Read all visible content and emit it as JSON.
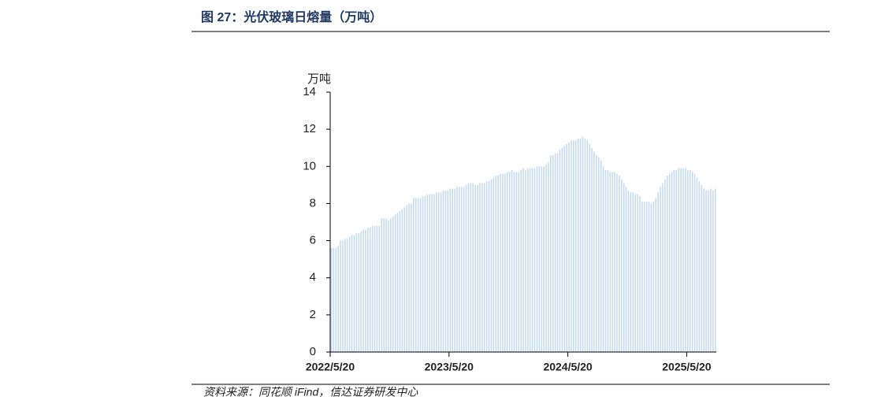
{
  "chart_data": {
    "type": "bar",
    "title": "图 27：光伏玻璃日熔量（万吨）",
    "y_label": "万吨",
    "source": "资料来源：同花顺 iFind，信达证券研发中心",
    "color": "#c6dbf0",
    "ylim": [
      0,
      14
    ],
    "yticks": [
      0,
      2,
      4,
      6,
      8,
      10,
      12,
      14
    ],
    "categories": [
      "2022/5/20",
      null,
      null,
      null,
      null,
      null,
      null,
      null,
      null,
      null,
      null,
      null,
      null,
      null,
      null,
      null,
      null,
      null,
      null,
      null,
      null,
      null,
      null,
      null,
      null,
      null,
      null,
      null,
      null,
      null,
      null,
      null,
      null,
      null,
      null,
      null,
      null,
      null,
      null,
      null,
      null,
      null,
      null,
      null,
      null,
      null,
      null,
      null,
      null,
      null,
      null,
      null,
      "2023/5/20",
      null,
      null,
      null,
      null,
      null,
      null,
      null,
      null,
      null,
      null,
      null,
      null,
      null,
      null,
      null,
      null,
      null,
      null,
      null,
      null,
      null,
      null,
      null,
      null,
      null,
      null,
      null,
      null,
      null,
      null,
      null,
      null,
      null,
      null,
      null,
      null,
      null,
      null,
      null,
      null,
      null,
      null,
      null,
      null,
      null,
      null,
      null,
      null,
      null,
      null,
      null,
      "2024/5/20",
      null,
      null,
      null,
      null,
      null,
      null,
      null,
      null,
      null,
      null,
      null,
      null,
      null,
      null,
      null,
      null,
      null,
      null,
      null,
      null,
      null,
      null,
      null,
      null,
      null,
      null,
      null,
      null,
      null,
      null,
      null,
      null,
      null,
      null,
      null,
      null,
      null,
      null,
      null,
      null,
      null,
      null,
      null,
      null,
      null,
      null,
      null,
      null,
      null,
      null,
      null,
      "2025/5/20",
      null,
      null,
      null,
      null,
      null,
      null,
      null,
      null,
      null,
      null,
      null,
      null
    ],
    "values": [
      5.6,
      5.6,
      5.6,
      5.7,
      6.0,
      6.0,
      6.1,
      6.1,
      6.2,
      6.3,
      6.3,
      6.4,
      6.4,
      6.5,
      6.6,
      6.6,
      6.7,
      6.7,
      6.8,
      6.8,
      6.8,
      6.8,
      7.2,
      7.2,
      7.2,
      7.1,
      7.2,
      7.3,
      7.4,
      7.5,
      7.6,
      7.7,
      7.8,
      7.9,
      8.0,
      8.0,
      8.3,
      8.3,
      8.3,
      8.3,
      8.4,
      8.4,
      8.5,
      8.5,
      8.5,
      8.5,
      8.6,
      8.6,
      8.6,
      8.7,
      8.7,
      8.7,
      8.8,
      8.8,
      8.8,
      8.9,
      8.9,
      8.9,
      8.9,
      9.0,
      9.1,
      9.1,
      9.1,
      9.0,
      9.0,
      9.1,
      9.1,
      9.1,
      9.2,
      9.2,
      9.3,
      9.4,
      9.5,
      9.5,
      9.6,
      9.6,
      9.6,
      9.7,
      9.7,
      9.8,
      9.7,
      9.7,
      9.7,
      9.8,
      9.9,
      9.8,
      9.9,
      9.9,
      9.9,
      9.9,
      10.0,
      10.0,
      10.0,
      10.0,
      10.1,
      10.2,
      10.6,
      10.6,
      10.7,
      10.7,
      10.9,
      11.0,
      11.1,
      11.2,
      11.3,
      11.4,
      11.4,
      11.4,
      11.5,
      11.5,
      11.6,
      11.5,
      11.4,
      11.2,
      11.0,
      10.8,
      10.6,
      10.5,
      10.3,
      10.0,
      9.8,
      9.8,
      9.7,
      9.7,
      9.7,
      9.6,
      9.5,
      9.3,
      9.1,
      8.9,
      8.7,
      8.6,
      8.6,
      8.5,
      8.5,
      8.4,
      8.1,
      8.1,
      8.1,
      8.1,
      8.0,
      8.1,
      8.3,
      8.6,
      8.9,
      9.1,
      9.3,
      9.5,
      9.6,
      9.7,
      9.8,
      9.8,
      9.9,
      9.9,
      9.9,
      9.9,
      9.8,
      9.8,
      9.7,
      9.6,
      9.4,
      9.2,
      9.0,
      8.8,
      8.7,
      8.7,
      8.8,
      8.7,
      8.8
    ]
  }
}
